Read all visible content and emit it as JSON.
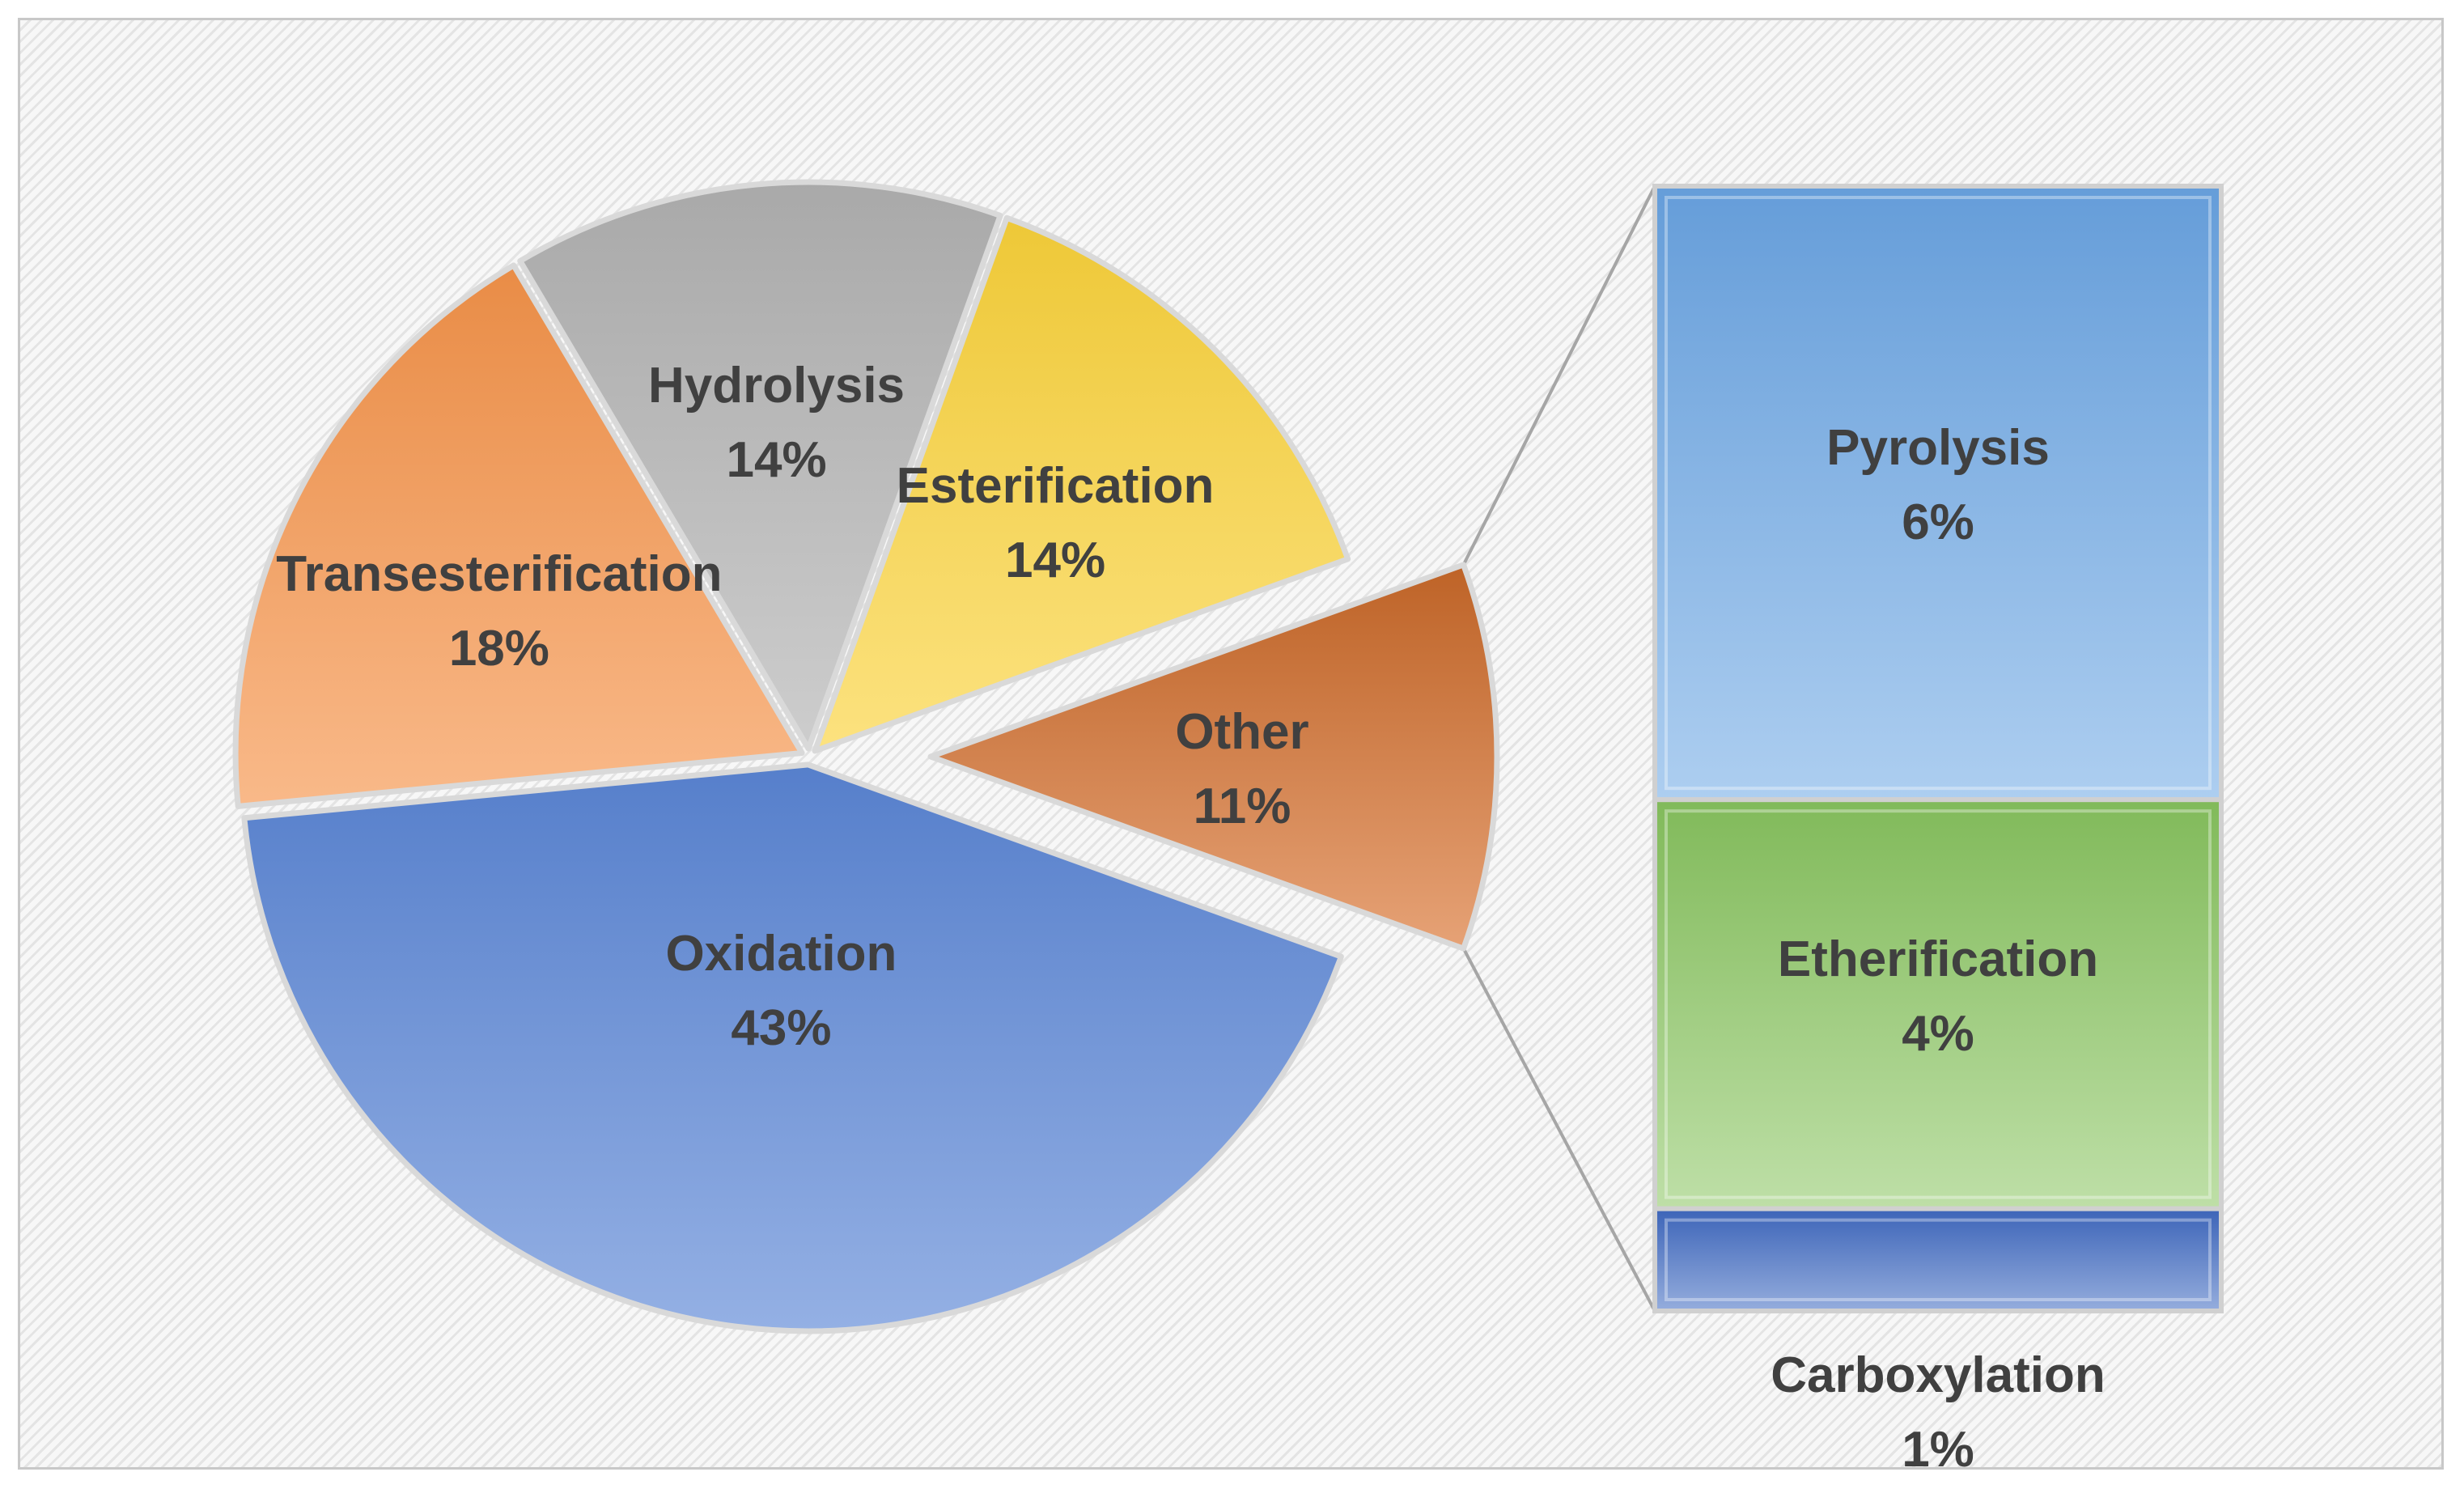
{
  "chart_data": {
    "type": "pie",
    "title": "",
    "slices": [
      {
        "label": "Oxidation",
        "value": 43,
        "value_label": "43%",
        "color": "#5b86d6"
      },
      {
        "label": "Transesterification",
        "value": 18,
        "value_label": "18%",
        "color": "#f5934a"
      },
      {
        "label": "Hydrolysis",
        "value": 14,
        "value_label": "14%",
        "color": "#b2b2b2"
      },
      {
        "label": "Esterification",
        "value": 14,
        "value_label": "14%",
        "color": "#fbd23a"
      },
      {
        "label": "Other",
        "value": 11,
        "value_label": "11%",
        "color": "#d8702c",
        "exploded": true
      }
    ],
    "breakdown_of": "Other",
    "breakdown_type": "stacked-bar",
    "breakdown": [
      {
        "label": "Pyrolysis",
        "value": 6,
        "value_label": "6%",
        "color": "#6aa5e4"
      },
      {
        "label": "Etherification",
        "value": 4,
        "value_label": "4%",
        "color": "#88c45f"
      },
      {
        "label": "Carboxylation",
        "value": 1,
        "value_label": "1%",
        "color": "#3f69c2"
      }
    ],
    "legend": "none"
  }
}
